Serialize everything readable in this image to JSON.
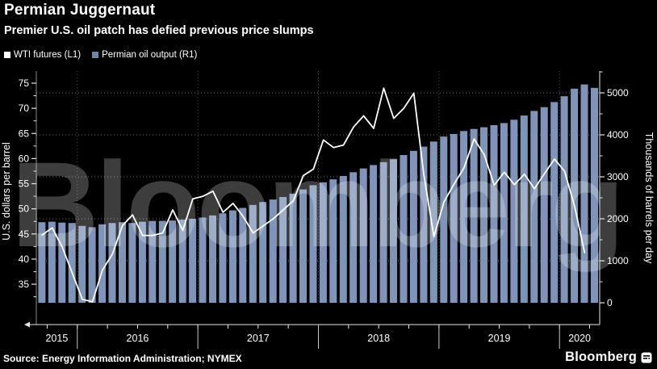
{
  "header": {
    "title": "Permian Juggernaut",
    "subtitle": "Premier U.S. oil patch has defied previous price slumps"
  },
  "legend": {
    "items": [
      {
        "label": "WTI futures (L1)",
        "swatch_color": "#ffffff"
      },
      {
        "label": "Permian oil output (R1)",
        "swatch_color": "#6e87a9"
      }
    ]
  },
  "watermark": {
    "text": "Bloomberg",
    "color": "rgba(255,255,255,0.24)"
  },
  "footer": {
    "source": "Source: Energy Information Administration; NYMEX",
    "logo": "Bloomberg"
  },
  "colors": {
    "background": "#000000",
    "bar": "#7e95b9",
    "line": "#ffffff",
    "axis": "#e6e6e6",
    "tick_text": "#ffffff",
    "grid": "rgba(255,255,255,0.45)",
    "year_divider": "#c8c8c8"
  },
  "chart_data": {
    "type": "bar",
    "subtype": "combo-bar-line",
    "title": "Permian Juggernaut",
    "x_months": [
      "2015-09",
      "2015-10",
      "2015-11",
      "2015-12",
      "2016-01",
      "2016-02",
      "2016-03",
      "2016-04",
      "2016-05",
      "2016-06",
      "2016-07",
      "2016-08",
      "2016-09",
      "2016-10",
      "2016-11",
      "2016-12",
      "2017-01",
      "2017-02",
      "2017-03",
      "2017-04",
      "2017-05",
      "2017-06",
      "2017-07",
      "2017-08",
      "2017-09",
      "2017-10",
      "2017-11",
      "2017-12",
      "2018-01",
      "2018-02",
      "2018-03",
      "2018-04",
      "2018-05",
      "2018-06",
      "2018-07",
      "2018-08",
      "2018-09",
      "2018-10",
      "2018-11",
      "2018-12",
      "2019-01",
      "2019-02",
      "2019-03",
      "2019-04",
      "2019-05",
      "2019-06",
      "2019-07",
      "2019-08",
      "2019-09",
      "2019-10",
      "2019-11",
      "2019-12",
      "2020-01",
      "2020-02",
      "2020-03",
      "2020-04"
    ],
    "series": [
      {
        "name": "WTI futures (L1)",
        "type": "line",
        "axis": "left",
        "units": "U.S. dollars per barrel",
        "values": [
          44.8,
          46.2,
          42.4,
          37.2,
          32.0,
          31.5,
          37.8,
          41.0,
          46.7,
          48.8,
          44.7,
          44.7,
          45.2,
          49.8,
          45.7,
          52.0,
          52.5,
          53.5,
          49.3,
          51.1,
          48.5,
          45.2,
          46.6,
          48.0,
          49.8,
          51.6,
          56.6,
          57.9,
          63.7,
          62.2,
          62.7,
          66.3,
          68.5,
          66.0,
          74.0,
          68.0,
          70.0,
          73.0,
          56.7,
          44.5,
          51.4,
          54.9,
          58.2,
          63.9,
          60.8,
          54.7,
          57.3,
          54.8,
          56.9,
          54.0,
          57.0,
          59.9,
          57.5,
          50.5,
          41.3
        ]
      },
      {
        "name": "Permian oil output (R1)",
        "type": "bar",
        "axis": "right",
        "units": "Thousands of barrels per day",
        "values": [
          1920,
          1930,
          1910,
          1900,
          1830,
          1800,
          1870,
          1900,
          1920,
          1900,
          1930,
          1950,
          1950,
          1960,
          1980,
          2000,
          2030,
          2080,
          2130,
          2200,
          2260,
          2330,
          2400,
          2460,
          2520,
          2600,
          2700,
          2800,
          2870,
          2940,
          3020,
          3110,
          3200,
          3280,
          3350,
          3420,
          3520,
          3620,
          3720,
          3840,
          3960,
          4020,
          4090,
          4140,
          4180,
          4230,
          4280,
          4360,
          4460,
          4570,
          4660,
          4780,
          4920,
          5100,
          5200,
          5120
        ]
      }
    ],
    "left_axis": {
      "title": "U.S. dollars per barrel",
      "ticks": [
        35,
        40,
        45,
        50,
        55,
        60,
        65,
        70,
        75
      ],
      "minor_step": 2.5,
      "range": [
        31,
        77
      ]
    },
    "right_axis": {
      "title": "Thousands of barrels per day",
      "ticks": [
        0,
        1000,
        2000,
        3000,
        4000,
        5000
      ],
      "minor_step": 500,
      "range": [
        0,
        5530
      ]
    },
    "x_axis": {
      "year_labels": [
        "2015",
        "2016",
        "2017",
        "2018",
        "2019",
        "2020"
      ]
    },
    "grid": {
      "horizontal": "dotted at right-axis thousands",
      "vertical": "dotted at year starts"
    },
    "legend_position": "top-left"
  }
}
